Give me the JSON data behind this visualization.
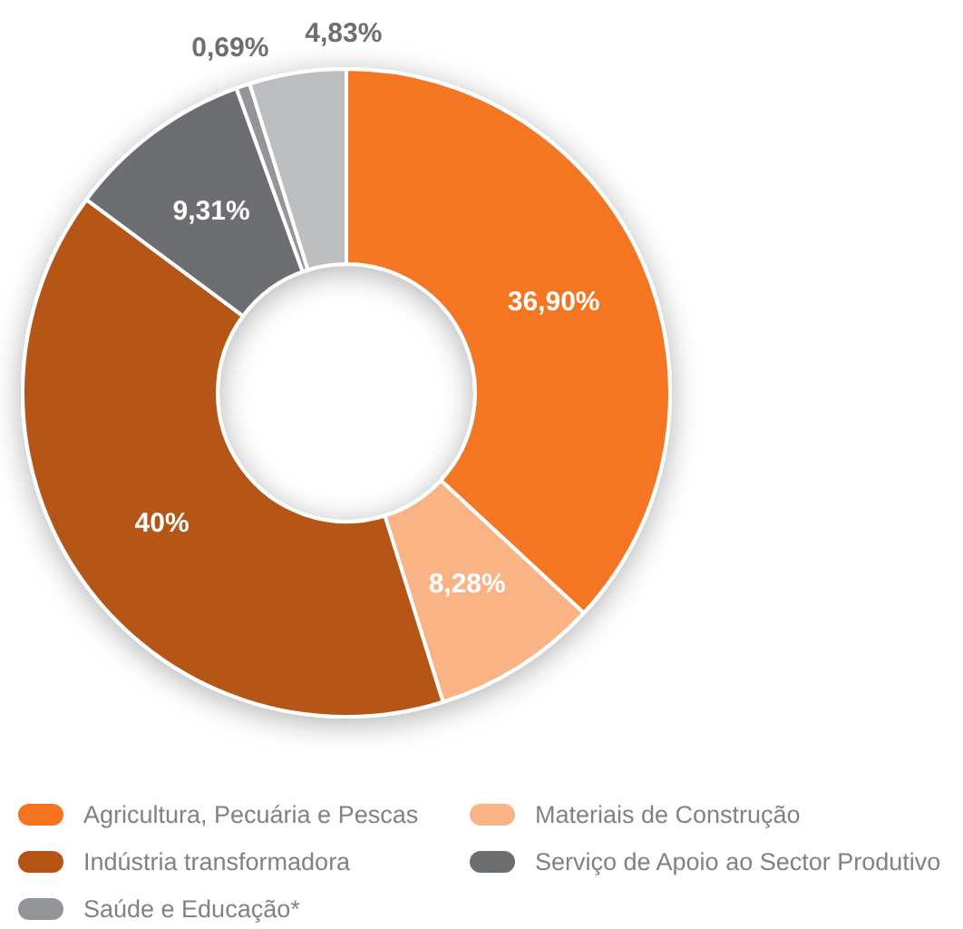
{
  "chart_data": {
    "type": "donut",
    "categories": [
      "Agricultura, Pecuária e Pescas",
      "Materiais de Construção",
      "Indústria transformadora",
      "Serviço de Apoio ao Sector Produtivo",
      "Saúde e Educação*",
      null
    ],
    "values": [
      36.9,
      8.28,
      40,
      9.31,
      0.69,
      4.83
    ],
    "colors": [
      "#f47421",
      "#f9b384",
      "#b55416",
      "#6d6e71",
      "#939598",
      "#bcbec0"
    ],
    "value_labels": [
      "36,90%",
      "8,28%",
      "40%",
      "9,31%",
      "0,69%",
      "4,83%"
    ],
    "legend": "bottom"
  }
}
